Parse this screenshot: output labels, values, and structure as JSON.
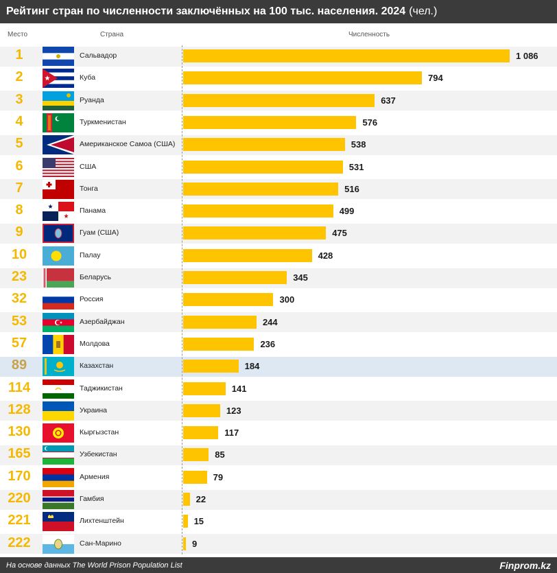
{
  "header": {
    "title": "Рейтинг стран по численности заключённых на 100 тыс. населения. 2024",
    "unit": "(чел.)"
  },
  "columns": {
    "rank": "Место",
    "country": "Страна",
    "value": "Численность"
  },
  "footer": {
    "source": "На основе данных The World Prison Population List",
    "brand": "Finprom.kz"
  },
  "colors": {
    "bar": "#fec400",
    "rank": "#f5b800",
    "header_bg": "#3b3b3b",
    "highlight_row": "#dde8f2",
    "stripe": "#f2f2f2"
  },
  "chart_data": {
    "type": "bar",
    "orientation": "horizontal",
    "title": "Рейтинг стран по численности заключённых на 100 тыс. населения. 2024",
    "highlight": "Казахстан",
    "rows": [
      {
        "rank": "1",
        "country": "Сальвадор",
        "value": 1086,
        "label": "1 086",
        "flag": "el-salvador"
      },
      {
        "rank": "2",
        "country": "Куба",
        "value": 794,
        "label": "794",
        "flag": "cuba"
      },
      {
        "rank": "3",
        "country": "Руанда",
        "value": 637,
        "label": "637",
        "flag": "rwanda"
      },
      {
        "rank": "4",
        "country": "Туркменистан",
        "value": 576,
        "label": "576",
        "flag": "turkmenistan"
      },
      {
        "rank": "5",
        "country": "Американское Самоа (США)",
        "value": 538,
        "label": "538",
        "flag": "american-samoa"
      },
      {
        "rank": "6",
        "country": "США",
        "value": 531,
        "label": "531",
        "flag": "usa"
      },
      {
        "rank": "7",
        "country": "Тонга",
        "value": 516,
        "label": "516",
        "flag": "tonga"
      },
      {
        "rank": "8",
        "country": "Панама",
        "value": 499,
        "label": "499",
        "flag": "panama"
      },
      {
        "rank": "9",
        "country": "Гуам (США)",
        "value": 475,
        "label": "475",
        "flag": "guam"
      },
      {
        "rank": "10",
        "country": "Палау",
        "value": 428,
        "label": "428",
        "flag": "palau"
      },
      {
        "rank": "23",
        "country": "Беларусь",
        "value": 345,
        "label": "345",
        "flag": "belarus"
      },
      {
        "rank": "32",
        "country": "Россия",
        "value": 300,
        "label": "300",
        "flag": "russia"
      },
      {
        "rank": "53",
        "country": "Азербайджан",
        "value": 244,
        "label": "244",
        "flag": "azerbaijan"
      },
      {
        "rank": "57",
        "country": "Молдова",
        "value": 236,
        "label": "236",
        "flag": "moldova"
      },
      {
        "rank": "89",
        "country": "Казахстан",
        "value": 184,
        "label": "184",
        "flag": "kazakhstan"
      },
      {
        "rank": "114",
        "country": "Таджикистан",
        "value": 141,
        "label": "141",
        "flag": "tajikistan"
      },
      {
        "rank": "128",
        "country": "Украина",
        "value": 123,
        "label": "123",
        "flag": "ukraine"
      },
      {
        "rank": "130",
        "country": "Кыргызстан",
        "value": 117,
        "label": "117",
        "flag": "kyrgyzstan"
      },
      {
        "rank": "165",
        "country": "Узбекистан",
        "value": 85,
        "label": "85",
        "flag": "uzbekistan"
      },
      {
        "rank": "170",
        "country": "Армения",
        "value": 79,
        "label": "79",
        "flag": "armenia"
      },
      {
        "rank": "220",
        "country": "Гамбия",
        "value": 22,
        "label": "22",
        "flag": "gambia"
      },
      {
        "rank": "221",
        "country": "Лихтенштейн",
        "value": 15,
        "label": "15",
        "flag": "liechtenstein"
      },
      {
        "rank": "222",
        "country": "Сан-Марино",
        "value": 9,
        "label": "9",
        "flag": "san-marino"
      }
    ],
    "xlim": [
      0,
      1086
    ]
  }
}
